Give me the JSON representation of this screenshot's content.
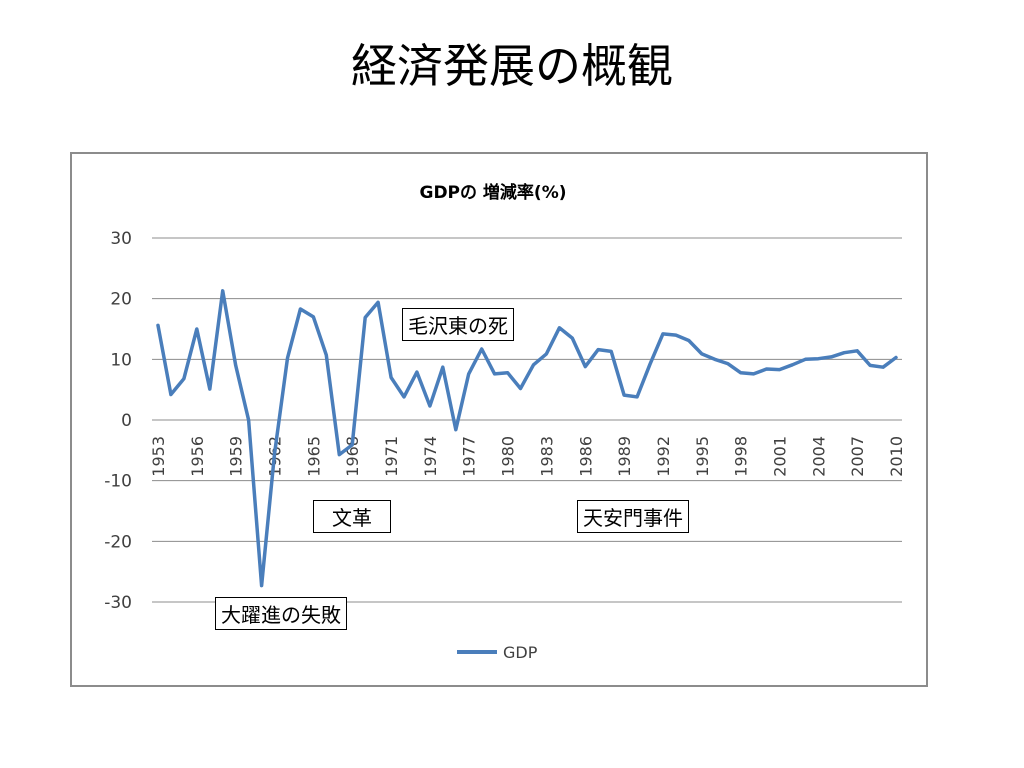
{
  "slide": {
    "title": "経済発展の概観"
  },
  "annotations": {
    "mao": "毛沢東の死",
    "cultural_revolution": "文革",
    "tiananmen": "天安門事件",
    "great_leap": "大躍進の失敗"
  },
  "chart_data": {
    "type": "line",
    "title": "GDPの 増減率(%)",
    "xlabel": "",
    "ylabel": "",
    "ylim": [
      -30,
      30
    ],
    "yticks": [
      30,
      20,
      10,
      0,
      -10,
      -20,
      -30
    ],
    "grid": true,
    "legend_position": "bottom",
    "x": [
      1953,
      1954,
      1955,
      1956,
      1957,
      1958,
      1959,
      1960,
      1961,
      1962,
      1963,
      1964,
      1965,
      1966,
      1967,
      1968,
      1969,
      1970,
      1971,
      1972,
      1973,
      1974,
      1975,
      1976,
      1977,
      1978,
      1979,
      1980,
      1981,
      1982,
      1983,
      1984,
      1985,
      1986,
      1987,
      1988,
      1989,
      1990,
      1991,
      1992,
      1993,
      1994,
      1995,
      1996,
      1997,
      1998,
      1999,
      2000,
      2001,
      2002,
      2003,
      2004,
      2005,
      2006,
      2007,
      2008,
      2009,
      2010
    ],
    "xtick_labels": [
      "1953",
      "1956",
      "1959",
      "1962",
      "1965",
      "1968",
      "1971",
      "1974",
      "1977",
      "1980",
      "1983",
      "1986",
      "1989",
      "1992",
      "1995",
      "1998",
      "2001",
      "2004",
      "2007",
      "2010"
    ],
    "series": [
      {
        "name": "GDP",
        "color": "#4a7ebb",
        "values": [
          15.6,
          4.2,
          6.8,
          15.0,
          5.1,
          21.3,
          9.0,
          0.0,
          -27.3,
          -5.6,
          10.2,
          18.3,
          17.0,
          10.7,
          -5.7,
          -4.1,
          16.9,
          19.4,
          7.0,
          3.8,
          7.9,
          2.3,
          8.7,
          -1.6,
          7.6,
          11.7,
          7.6,
          7.8,
          5.2,
          9.1,
          10.9,
          15.2,
          13.5,
          8.8,
          11.6,
          11.3,
          4.1,
          3.8,
          9.2,
          14.2,
          14.0,
          13.1,
          10.9,
          10.0,
          9.3,
          7.8,
          7.6,
          8.4,
          8.3,
          9.1,
          10.0,
          10.1,
          10.4,
          11.1,
          11.4,
          9.0,
          8.7,
          10.3
        ]
      }
    ]
  }
}
